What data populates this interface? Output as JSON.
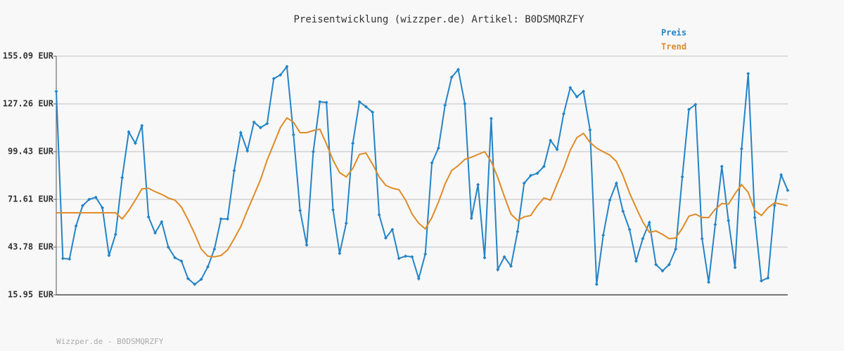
{
  "chart_data": {
    "type": "line",
    "title": "Preisentwicklung (wizzper.de) Artikel: B0DSMQRZFY",
    "footer": "Wizzper.de - B0DSMQRZFY",
    "legend": "top-right",
    "grid": true,
    "ylim": [
      15.95,
      155.09
    ],
    "yticks": [
      {
        "value": 15.95,
        "label": "15.95 EUR"
      },
      {
        "value": 43.78,
        "label": "43.78 EUR"
      },
      {
        "value": 71.61,
        "label": "71.61 EUR"
      },
      {
        "value": 99.43,
        "label": "99.43 EUR"
      },
      {
        "value": 127.26,
        "label": "127.26 EUR"
      },
      {
        "value": 155.09,
        "label": "155.09 EUR"
      }
    ],
    "series": [
      {
        "name": "Preis",
        "color": "#2484c6",
        "markers": true,
        "values": [
          134.6,
          37.2,
          36.8,
          56.1,
          67.9,
          71.6,
          72.8,
          66.7,
          38.9,
          51.2,
          84.3,
          110.9,
          104.3,
          114.6,
          61.4,
          52.0,
          58.5,
          43.8,
          37.6,
          35.6,
          25.4,
          22.1,
          25.0,
          32.3,
          42.6,
          60.2,
          60.2,
          88.4,
          110.5,
          99.9,
          116.6,
          113.4,
          115.8,
          142.0,
          144.1,
          149.0,
          109.3,
          65.1,
          45.0,
          99.4,
          128.5,
          128.1,
          65.5,
          40.1,
          57.7,
          104.3,
          128.5,
          125.6,
          122.4,
          62.6,
          49.1,
          54.0,
          37.2,
          38.5,
          38.1,
          25.4,
          39.7,
          92.9,
          101.5,
          126.5,
          142.8,
          147.3,
          127.3,
          60.6,
          80.2,
          37.6,
          118.7,
          30.7,
          38.1,
          32.7,
          52.8,
          81.0,
          85.5,
          86.8,
          90.8,
          106.0,
          100.7,
          121.5,
          136.7,
          131.4,
          134.6,
          112.1,
          22.1,
          50.7,
          71.2,
          81.0,
          64.7,
          54.0,
          35.6,
          48.7,
          58.1,
          33.6,
          29.9,
          33.6,
          42.6,
          84.7,
          124.0,
          126.9,
          48.7,
          23.3,
          56.9,
          90.8,
          59.3,
          31.9,
          101.1,
          144.9,
          61.0,
          24.1,
          25.8,
          67.9,
          85.9,
          76.9
        ]
      },
      {
        "name": "Trend",
        "color": "#e08a26",
        "markers": false,
        "values": [
          63.8,
          63.8,
          63.8,
          63.8,
          63.8,
          63.8,
          63.8,
          63.8,
          63.8,
          63.8,
          60.2,
          65.1,
          71.2,
          77.7,
          78.1,
          76.1,
          74.5,
          72.4,
          71.2,
          67.1,
          59.7,
          51.6,
          42.6,
          38.5,
          38.1,
          38.9,
          42.1,
          48.7,
          55.7,
          65.1,
          74.1,
          83.1,
          94.5,
          103.9,
          113.4,
          119.1,
          116.6,
          110.5,
          110.5,
          111.7,
          112.5,
          103.9,
          94.5,
          87.2,
          84.7,
          89.6,
          97.8,
          98.6,
          92.1,
          84.7,
          79.8,
          78.1,
          77.3,
          71.2,
          63.0,
          57.7,
          54.4,
          61.0,
          70.0,
          80.6,
          88.4,
          91.3,
          94.9,
          96.2,
          97.8,
          99.4,
          93.7,
          84.3,
          73.3,
          63.0,
          59.3,
          61.4,
          62.2,
          67.9,
          72.4,
          71.2,
          80.6,
          89.6,
          100.3,
          107.6,
          110.1,
          104.8,
          101.5,
          99.4,
          97.4,
          93.7,
          85.5,
          75.3,
          66.7,
          58.5,
          52.4,
          53.2,
          51.2,
          48.7,
          49.1,
          54.8,
          61.8,
          63.0,
          61.0,
          61.0,
          65.9,
          69.2,
          68.8,
          74.9,
          80.2,
          75.7,
          65.1,
          62.2,
          66.7,
          69.6,
          68.8,
          67.9
        ]
      }
    ]
  }
}
